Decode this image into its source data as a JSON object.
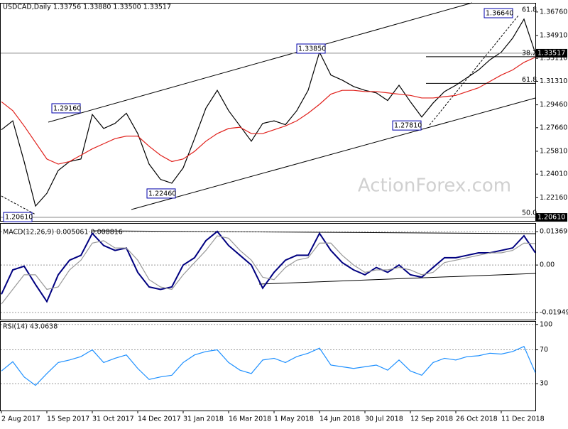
{
  "chart_data": [
    {
      "type": "line",
      "title": "USDCAD,Daily  1.33756 1.33880 1.33500 1.33517",
      "series": [
        {
          "name": "Close",
          "color": "#000000",
          "values": [
            1.275,
            1.282,
            1.25,
            1.215,
            1.225,
            1.243,
            1.25,
            1.252,
            1.287,
            1.276,
            1.28,
            1.288,
            1.272,
            1.248,
            1.236,
            1.233,
            1.245,
            1.268,
            1.292,
            1.306,
            1.29,
            1.278,
            1.266,
            1.28,
            1.282,
            1.279,
            1.29,
            1.306,
            1.336,
            1.318,
            1.314,
            1.309,
            1.306,
            1.304,
            1.298,
            1.31,
            1.297,
            1.285,
            1.296,
            1.305,
            1.31,
            1.316,
            1.322,
            1.33,
            1.336,
            1.347,
            1.362,
            1.33517
          ]
        },
        {
          "name": "MA",
          "color": "#e0201b",
          "values": [
            1.297,
            1.29,
            1.278,
            1.265,
            1.252,
            1.248,
            1.25,
            1.255,
            1.26,
            1.264,
            1.268,
            1.27,
            1.27,
            1.262,
            1.255,
            1.25,
            1.252,
            1.258,
            1.266,
            1.272,
            1.276,
            1.277,
            1.272,
            1.272,
            1.275,
            1.278,
            1.282,
            1.288,
            1.295,
            1.303,
            1.306,
            1.306,
            1.305,
            1.305,
            1.304,
            1.303,
            1.302,
            1.3,
            1.3,
            1.301,
            1.302,
            1.305,
            1.308,
            1.313,
            1.318,
            1.322,
            1.328,
            1.332
          ]
        }
      ],
      "ylim": [
        1.2039,
        1.3692
      ],
      "yticks": [
        {
          "value": 1.3676,
          "label": "1.36760"
        },
        {
          "value": 1.3491,
          "label": "1.34910"
        },
        {
          "value": 1.3311,
          "label": "1.33110"
        },
        {
          "value": 1.3131,
          "label": "1.31310"
        },
        {
          "value": 1.2946,
          "label": "1.29460"
        },
        {
          "value": 1.2766,
          "label": "1.27660"
        },
        {
          "value": 1.2581,
          "label": "1.25810"
        },
        {
          "value": 1.2401,
          "label": "1.24010"
        },
        {
          "value": 1.2216,
          "label": "1.22160"
        }
      ],
      "price_labels": [
        {
          "value": 1.33517,
          "label": "1.33517"
        },
        {
          "value": 1.2061,
          "label": "1.20610"
        }
      ],
      "annotations": [
        {
          "value": 1.3664,
          "label": "1.36640"
        },
        {
          "value": 1.3385,
          "label": "1.33850"
        },
        {
          "value": 1.2916,
          "label": "1.29160"
        },
        {
          "value": 1.2781,
          "label": "1.27810"
        },
        {
          "value": 1.2246,
          "label": "1.22460"
        },
        {
          "value": 1.2061,
          "label": "1.20610"
        }
      ],
      "fib_labels": [
        "61.8",
        "38.2",
        "61.8",
        "50.0"
      ],
      "watermark": "ActionForex.com"
    },
    {
      "type": "line",
      "title": "MACD(12,26,9) 0.005061 0.008816",
      "series": [
        {
          "name": "MACD",
          "color": "#000080",
          "values": [
            -0.012,
            -0.002,
            -0.0005,
            -0.008,
            -0.015,
            -0.004,
            0.002,
            0.004,
            0.013,
            0.008,
            0.006,
            0.007,
            -0.003,
            -0.009,
            -0.01,
            -0.009,
            0.0,
            0.003,
            0.01,
            0.0138,
            0.008,
            0.004,
            0.0,
            -0.0095,
            -0.003,
            0.002,
            0.004,
            0.004,
            0.013,
            0.006,
            0.001,
            -0.002,
            -0.004,
            -0.001,
            -0.003,
            0.0,
            -0.004,
            -0.005,
            -0.001,
            0.003,
            0.003,
            0.004,
            0.005,
            0.005,
            0.006,
            0.007,
            0.012,
            0.005061
          ]
        },
        {
          "name": "Signal",
          "color": "#999999",
          "values": [
            -0.016,
            -0.01,
            -0.004,
            -0.004,
            -0.01,
            -0.009,
            -0.002,
            0.002,
            0.009,
            0.01,
            0.007,
            0.007,
            0.002,
            -0.006,
            -0.009,
            -0.01,
            -0.004,
            0.001,
            0.006,
            0.012,
            0.011,
            0.006,
            0.002,
            -0.005,
            -0.006,
            -0.001,
            0.002,
            0.003,
            0.009,
            0.009,
            0.004,
            0.0,
            -0.003,
            -0.002,
            -0.002,
            -0.001,
            -0.002,
            -0.004,
            -0.003,
            0.001,
            0.002,
            0.003,
            0.004,
            0.005,
            0.005,
            0.006,
            0.009,
            0.008816
          ]
        }
      ],
      "ylim": [
        -0.023,
        0.0155
      ],
      "yticks": [
        0.01369,
        {
          "value": 0,
          "label": "0.00"
        },
        -0.019491
      ]
    },
    {
      "type": "line",
      "title": "RSI(14) 43.0638",
      "categories": [
        "2 Aug 2017",
        null,
        null,
        null,
        "15 Sep 2017",
        null,
        null,
        null,
        "31 Oct 2017",
        null,
        null,
        null,
        "14 Dec 2017",
        null,
        null,
        null,
        "31 Jan 2018",
        null,
        null,
        null,
        "16 Mar 2018",
        null,
        null,
        null,
        "1 May 2018",
        null,
        null,
        null,
        "14 Jun 2018",
        null,
        null,
        null,
        "30 Jul 2018",
        null,
        null,
        null,
        "12 Sep 2018",
        null,
        null,
        null,
        "26 Oct 2018",
        null,
        null,
        null,
        "11 Dec 2018",
        null,
        null,
        null
      ],
      "series": [
        {
          "name": "RSI",
          "color": "#1e90ff",
          "values": [
            45,
            56,
            38,
            28,
            42,
            55,
            58,
            62,
            70,
            55,
            60,
            64,
            48,
            35,
            38,
            40,
            55,
            64,
            68,
            70,
            55,
            46,
            42,
            58,
            60,
            55,
            62,
            66,
            72,
            52,
            50,
            48,
            50,
            52,
            46,
            58,
            45,
            40,
            55,
            60,
            58,
            62,
            63,
            66,
            65,
            68,
            74,
            43.0638
          ]
        }
      ],
      "ylim": [
        0,
        104
      ],
      "yticks": [
        100,
        70,
        30
      ]
    }
  ]
}
